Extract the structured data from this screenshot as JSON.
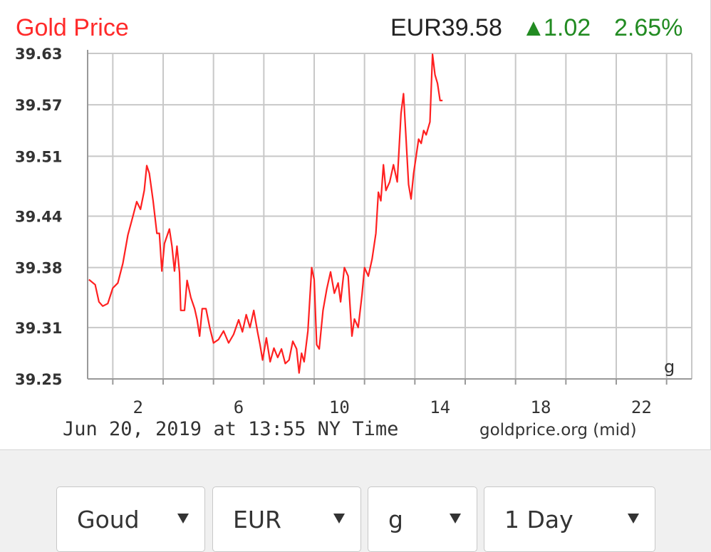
{
  "header": {
    "title": "Gold Price",
    "price": "EUR39.58",
    "change_arrow": "▲",
    "change_value": "1.02",
    "change_percent": "2.65%"
  },
  "colors": {
    "title": "#ff2a2a",
    "line": "#ff2020",
    "up": "#228b22",
    "grid": "#c8c8c8"
  },
  "unit_mark": "g",
  "footer": {
    "timestamp": "Jun 20, 2019 at 13:55 NY Time",
    "source": "goldprice.org (mid)"
  },
  "chart_data": {
    "type": "line",
    "title": "Gold Price",
    "xlabel": "",
    "ylabel": "",
    "xlim": [
      0,
      24
    ],
    "ylim": [
      39.25,
      39.63
    ],
    "x_ticks": [
      2,
      6,
      10,
      14,
      18,
      22
    ],
    "x_tick_labels": [
      "2",
      "6",
      "10",
      "14",
      "18",
      "22"
    ],
    "y_ticks": [
      39.25,
      39.31,
      39.38,
      39.44,
      39.51,
      39.57,
      39.63
    ],
    "y_tick_labels": [
      "39.25",
      "39.31",
      "39.38",
      "39.44",
      "39.51",
      "39.57",
      "39.63"
    ],
    "grid": true,
    "series": [
      {
        "values": [
          [
            0.05,
            39.366
          ],
          [
            0.3,
            39.36
          ],
          [
            0.45,
            39.34
          ],
          [
            0.6,
            39.335
          ],
          [
            0.8,
            39.338
          ],
          [
            1.0,
            39.356
          ],
          [
            1.2,
            39.362
          ],
          [
            1.4,
            39.385
          ],
          [
            1.6,
            39.418
          ],
          [
            1.8,
            39.44
          ],
          [
            1.95,
            39.457
          ],
          [
            2.1,
            39.448
          ],
          [
            2.25,
            39.47
          ],
          [
            2.35,
            39.499
          ],
          [
            2.45,
            39.49
          ],
          [
            2.6,
            39.458
          ],
          [
            2.75,
            39.42
          ],
          [
            2.85,
            39.42
          ],
          [
            2.95,
            39.376
          ],
          [
            3.05,
            39.408
          ],
          [
            3.25,
            39.425
          ],
          [
            3.35,
            39.405
          ],
          [
            3.45,
            39.376
          ],
          [
            3.55,
            39.405
          ],
          [
            3.65,
            39.374
          ],
          [
            3.7,
            39.33
          ],
          [
            3.85,
            39.33
          ],
          [
            3.95,
            39.365
          ],
          [
            4.1,
            39.345
          ],
          [
            4.25,
            39.332
          ],
          [
            4.35,
            39.319
          ],
          [
            4.45,
            39.3
          ],
          [
            4.55,
            39.332
          ],
          [
            4.7,
            39.332
          ],
          [
            4.85,
            39.31
          ],
          [
            5.0,
            39.292
          ],
          [
            5.2,
            39.296
          ],
          [
            5.4,
            39.306
          ],
          [
            5.6,
            39.292
          ],
          [
            5.8,
            39.302
          ],
          [
            6.0,
            39.319
          ],
          [
            6.15,
            39.305
          ],
          [
            6.3,
            39.325
          ],
          [
            6.45,
            39.31
          ],
          [
            6.6,
            39.33
          ],
          [
            6.75,
            39.305
          ],
          [
            6.85,
            39.29
          ],
          [
            6.95,
            39.272
          ],
          [
            7.1,
            39.298
          ],
          [
            7.25,
            39.27
          ],
          [
            7.4,
            39.286
          ],
          [
            7.55,
            39.275
          ],
          [
            7.7,
            39.285
          ],
          [
            7.85,
            39.268
          ],
          [
            8.0,
            39.272
          ],
          [
            8.15,
            39.294
          ],
          [
            8.3,
            39.285
          ],
          [
            8.4,
            39.257
          ],
          [
            8.5,
            39.28
          ],
          [
            8.6,
            39.27
          ],
          [
            8.75,
            39.306
          ],
          [
            8.9,
            39.38
          ],
          [
            9.0,
            39.366
          ],
          [
            9.1,
            39.29
          ],
          [
            9.2,
            39.285
          ],
          [
            9.35,
            39.33
          ],
          [
            9.5,
            39.355
          ],
          [
            9.65,
            39.375
          ],
          [
            9.8,
            39.35
          ],
          [
            9.95,
            39.362
          ],
          [
            10.05,
            39.34
          ],
          [
            10.2,
            39.38
          ],
          [
            10.35,
            39.37
          ],
          [
            10.5,
            39.3
          ],
          [
            10.6,
            39.32
          ],
          [
            10.75,
            39.31
          ],
          [
            10.9,
            39.348
          ],
          [
            11.0,
            39.38
          ],
          [
            11.15,
            39.37
          ],
          [
            11.3,
            39.39
          ],
          [
            11.45,
            39.42
          ],
          [
            11.55,
            39.468
          ],
          [
            11.65,
            39.458
          ],
          [
            11.75,
            39.5
          ],
          [
            11.85,
            39.47
          ],
          [
            12.0,
            39.48
          ],
          [
            12.15,
            39.5
          ],
          [
            12.3,
            39.48
          ],
          [
            12.45,
            39.56
          ],
          [
            12.55,
            39.583
          ],
          [
            12.65,
            39.53
          ],
          [
            12.75,
            39.477
          ],
          [
            12.85,
            39.46
          ],
          [
            12.95,
            39.49
          ],
          [
            13.05,
            39.51
          ],
          [
            13.15,
            39.53
          ],
          [
            13.25,
            39.525
          ],
          [
            13.35,
            39.54
          ],
          [
            13.45,
            39.535
          ],
          [
            13.6,
            39.55
          ],
          [
            13.7,
            39.629
          ],
          [
            13.8,
            39.605
          ],
          [
            13.9,
            39.595
          ],
          [
            14.0,
            39.575
          ],
          [
            14.1,
            39.575
          ]
        ]
      }
    ]
  },
  "selects": [
    {
      "label": "Goud"
    },
    {
      "label": "EUR"
    },
    {
      "label": "g"
    },
    {
      "label": "1 Day"
    }
  ]
}
